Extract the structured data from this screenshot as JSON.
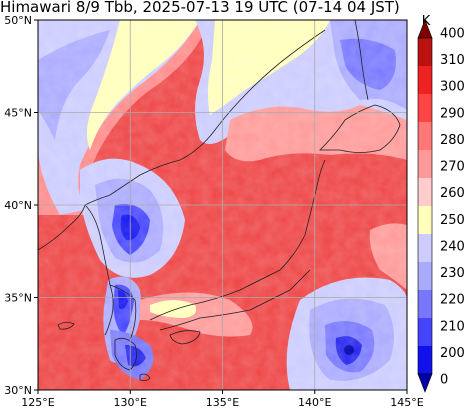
{
  "title": "Himawari 8/9 Tbb, 2025-07-13 19 UTC (07-14 04 JST)",
  "map": {
    "lon_range": [
      125,
      145
    ],
    "lat_range": [
      30,
      50
    ],
    "x_ticks": [
      "125°E",
      "130°E",
      "135°E",
      "140°E",
      "145°E"
    ],
    "y_ticks": [
      "30°N",
      "35°N",
      "40°N",
      "45°N",
      "50°N"
    ],
    "grid": true,
    "colors": {
      "background_warm": "#ee4444",
      "land_coast": "#222222",
      "grid": "#aaaaaa"
    }
  },
  "colorbar": {
    "unit": "K",
    "ticks": [
      "400",
      "310",
      "300",
      "290",
      "280",
      "270",
      "260",
      "250",
      "240",
      "230",
      "220",
      "210",
      "200",
      "0"
    ],
    "colors": [
      "#800000",
      "#bb1111",
      "#ee2222",
      "#ff4444",
      "#ff7777",
      "#ff9999",
      "#ffcccc",
      "#ffffbb",
      "#ccccff",
      "#aaaaff",
      "#7777ff",
      "#4444ff",
      "#1111ee",
      "#0000aa"
    ]
  }
}
